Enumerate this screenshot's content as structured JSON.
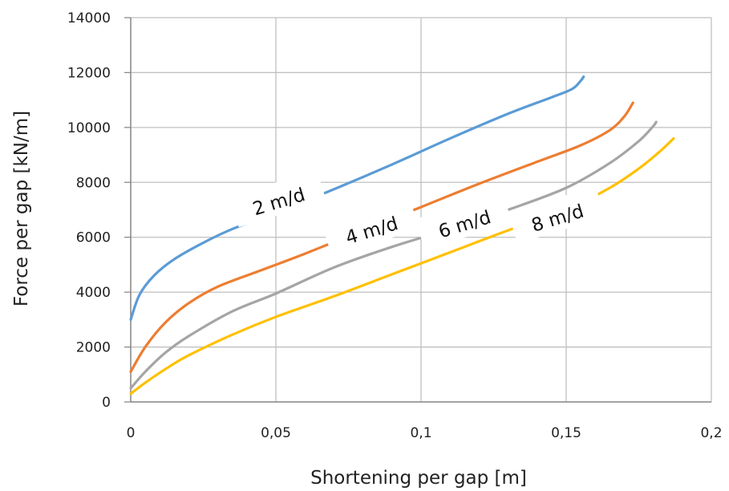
{
  "chart_data": {
    "type": "line",
    "xlabel": "Shortening per gap [m]",
    "ylabel": "Force per gap [kN/m]",
    "xlim": [
      0,
      0.2
    ],
    "ylim": [
      0,
      14000
    ],
    "x_ticks": [
      "0",
      "0,05",
      "0,1",
      "0,15",
      "0,2"
    ],
    "y_ticks": [
      "0",
      "2000",
      "4000",
      "6000",
      "8000",
      "10000",
      "12000",
      "14000"
    ],
    "grid": true,
    "legend": "none (labels placed on curves)",
    "series": [
      {
        "name": "2 m/d",
        "color": "#5b9bd5",
        "points": [
          [
            0,
            3000
          ],
          [
            0.003,
            3900
          ],
          [
            0.008,
            4600
          ],
          [
            0.015,
            5200
          ],
          [
            0.025,
            5800
          ],
          [
            0.035,
            6300
          ],
          [
            0.05,
            6900
          ],
          [
            0.07,
            7750
          ],
          [
            0.09,
            8650
          ],
          [
            0.11,
            9600
          ],
          [
            0.13,
            10500
          ],
          [
            0.145,
            11100
          ],
          [
            0.152,
            11400
          ],
          [
            0.155,
            11700
          ],
          [
            0.156,
            11850
          ]
        ]
      },
      {
        "name": "4 m/d",
        "color": "#ed7d31",
        "points": [
          [
            0,
            1100
          ],
          [
            0.005,
            2000
          ],
          [
            0.012,
            2900
          ],
          [
            0.02,
            3600
          ],
          [
            0.03,
            4200
          ],
          [
            0.045,
            4800
          ],
          [
            0.06,
            5400
          ],
          [
            0.08,
            6250
          ],
          [
            0.1,
            7100
          ],
          [
            0.12,
            7950
          ],
          [
            0.14,
            8750
          ],
          [
            0.155,
            9350
          ],
          [
            0.165,
            9900
          ],
          [
            0.17,
            10400
          ],
          [
            0.173,
            10900
          ]
        ]
      },
      {
        "name": "6 m/d",
        "color": "#a5a5a5",
        "points": [
          [
            0,
            500
          ],
          [
            0.005,
            1100
          ],
          [
            0.012,
            1800
          ],
          [
            0.02,
            2400
          ],
          [
            0.035,
            3300
          ],
          [
            0.05,
            3950
          ],
          [
            0.07,
            4900
          ],
          [
            0.09,
            5650
          ],
          [
            0.11,
            6300
          ],
          [
            0.13,
            7000
          ],
          [
            0.15,
            7800
          ],
          [
            0.165,
            8700
          ],
          [
            0.175,
            9500
          ],
          [
            0.18,
            10050
          ],
          [
            0.181,
            10200
          ]
        ]
      },
      {
        "name": "8 m/d",
        "color": "#ffc000",
        "points": [
          [
            0,
            300
          ],
          [
            0.005,
            700
          ],
          [
            0.012,
            1200
          ],
          [
            0.02,
            1700
          ],
          [
            0.035,
            2450
          ],
          [
            0.05,
            3100
          ],
          [
            0.07,
            3850
          ],
          [
            0.09,
            4650
          ],
          [
            0.11,
            5450
          ],
          [
            0.13,
            6250
          ],
          [
            0.15,
            7000
          ],
          [
            0.165,
            7800
          ],
          [
            0.175,
            8500
          ],
          [
            0.182,
            9100
          ],
          [
            0.187,
            9600
          ]
        ]
      }
    ],
    "annotations": [
      {
        "text": "2 m/d",
        "series": "2 m/d",
        "x": 0.051,
        "y": 7300
      },
      {
        "text": "4 m/d",
        "series": "4 m/d",
        "x": 0.083,
        "y": 6250
      },
      {
        "text": "6 m/d",
        "series": "6 m/d",
        "x": 0.115,
        "y": 6480
      },
      {
        "text": "8 m/d",
        "series": "8 m/d",
        "x": 0.147,
        "y": 6700
      }
    ]
  }
}
